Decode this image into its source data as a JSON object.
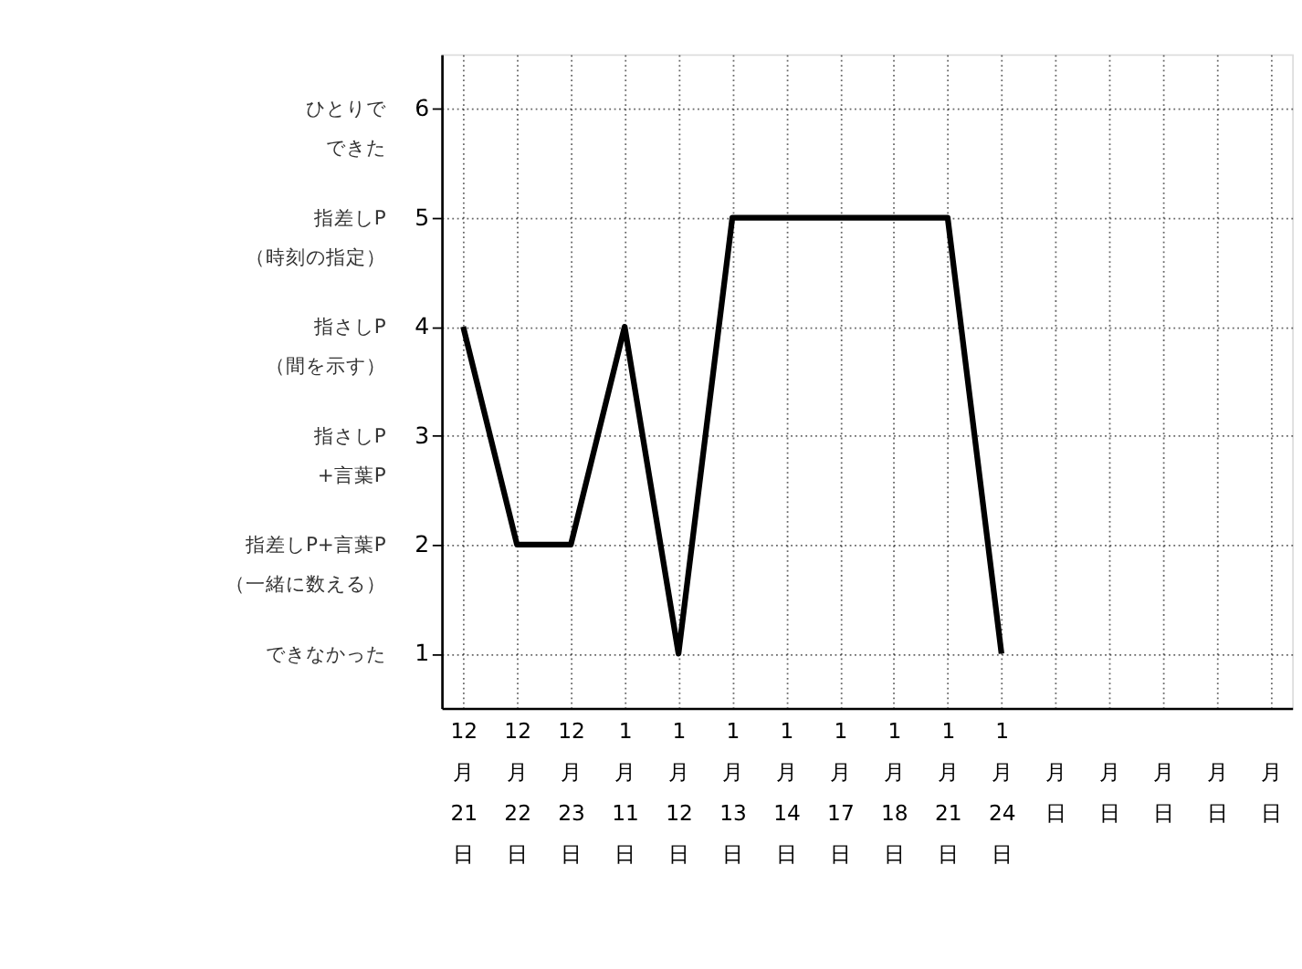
{
  "chart_data": {
    "type": "line",
    "categories": [
      "12月21日",
      "12月22日",
      "12月23日",
      "1月11日",
      "1月12日",
      "1月13日",
      "1月14日",
      "1月17日",
      "1月18日",
      "1月21日",
      "1月24日",
      "月日",
      "月日",
      "月日",
      "月日",
      "月日"
    ],
    "series": [
      {
        "color": "#000000",
        "values": [
          4,
          2,
          2,
          4,
          1,
          5,
          5,
          5,
          5,
          5,
          1,
          null,
          null,
          null,
          null,
          null
        ]
      }
    ],
    "ylim": [
      0.5,
      6.5
    ],
    "yticks": [
      1,
      2,
      3,
      4,
      5,
      6
    ],
    "annotations": [
      "できなかった",
      "指差しP+言葉P（一緒に数える）",
      "指さしP+言葉P",
      "指さしP（間を示す）",
      "指差しP（時刻の指定）",
      "ひとりでできた"
    ],
    "grid": true,
    "marker": "none",
    "line_style": "solid",
    "legend": false
  }
}
